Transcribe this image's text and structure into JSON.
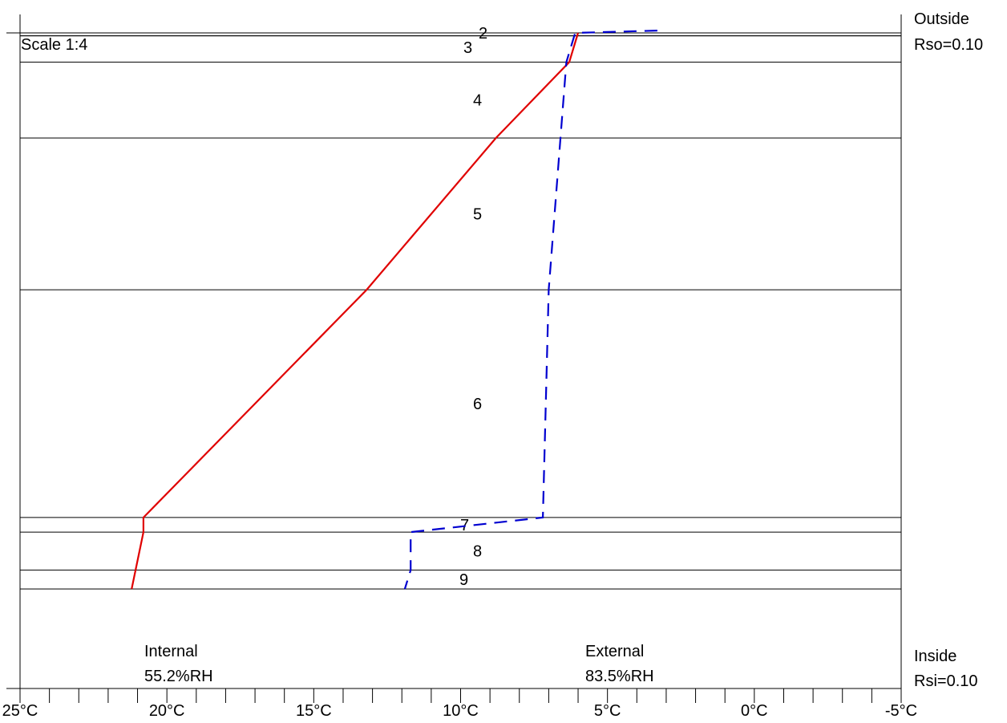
{
  "chart_data": {
    "type": "line",
    "scale_label": "Scale 1:4",
    "x_axis": {
      "min": -5,
      "max": 25,
      "reversed": true,
      "major_ticks": [
        25,
        20,
        15,
        10,
        5,
        0,
        -5
      ],
      "minor_step": 1,
      "tick_labels": [
        "25°C",
        "20°C",
        "15°C",
        "10°C",
        "5°C",
        "0°C",
        "-5°C"
      ]
    },
    "layers": [
      {
        "label": "2",
        "top": 0.0,
        "bottom": 0.1
      },
      {
        "label": "3",
        "top": 0.1,
        "bottom": 1.0
      },
      {
        "label": "4",
        "top": 1.0,
        "bottom": 3.6
      },
      {
        "label": "5",
        "top": 3.6,
        "bottom": 8.8
      },
      {
        "label": "6",
        "top": 8.8,
        "bottom": 16.6
      },
      {
        "label": "7",
        "top": 16.6,
        "bottom": 17.1
      },
      {
        "label": "8",
        "top": 17.1,
        "bottom": 18.4
      },
      {
        "label": "9",
        "top": 18.4,
        "bottom": 19.05
      }
    ],
    "depth_range": [
      0,
      19.05
    ],
    "series": [
      {
        "color": "#e00000",
        "dash": "solid",
        "points": [
          [
            6.0,
            0.0
          ],
          [
            6.3,
            1.0
          ],
          [
            8.8,
            3.6
          ],
          [
            13.2,
            8.8
          ],
          [
            20.8,
            16.6
          ],
          [
            20.8,
            17.1
          ],
          [
            21.2,
            19.05
          ]
        ]
      },
      {
        "color": "#0000d0",
        "dash": "dashed",
        "points": [
          [
            3.3,
            -0.08
          ],
          [
            6.1,
            0.0
          ],
          [
            6.4,
            1.0
          ],
          [
            7.0,
            8.8
          ],
          [
            7.2,
            16.6
          ],
          [
            11.7,
            17.1
          ],
          [
            11.7,
            18.4
          ],
          [
            11.9,
            19.05
          ]
        ]
      }
    ],
    "labels": {
      "outside": "Outside",
      "rso": "Rso=0.10",
      "inside": "Inside",
      "rsi": "Rsi=0.10",
      "internal": "Internal",
      "internal_rh": "55.2%RH",
      "external": "External",
      "external_rh": "83.5%RH"
    }
  }
}
